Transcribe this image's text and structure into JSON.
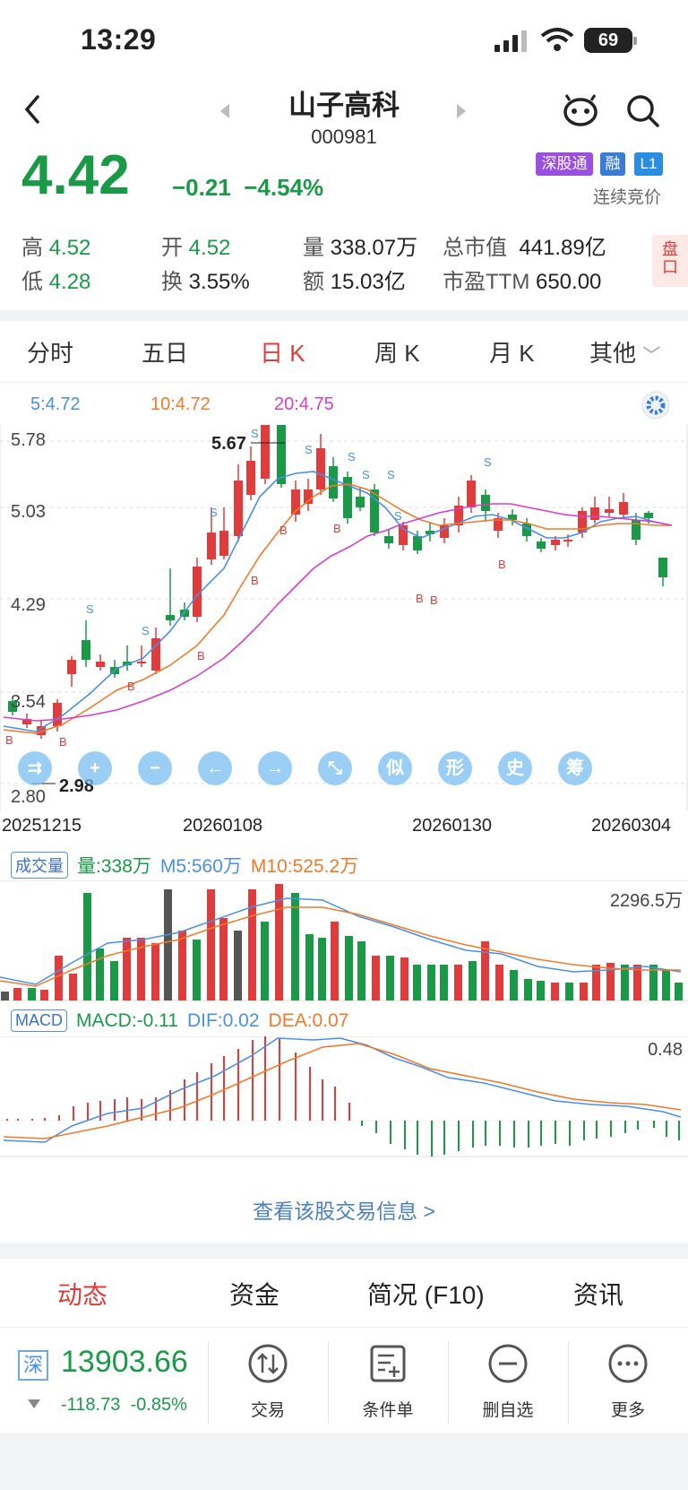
{
  "status_bar": {
    "time": "13:29",
    "battery": "69"
  },
  "header": {
    "title": "山子高科",
    "code": "000981"
  },
  "quote": {
    "price": "4.42",
    "change": "−0.21",
    "change_pct": "−4.54%",
    "badges": [
      {
        "label": "深股通",
        "color": "#9b4fe0"
      },
      {
        "label": "融",
        "color": "#3a7bd5"
      },
      {
        "label": "L1",
        "color": "#2b8de0"
      }
    ],
    "auction": "连续竞价"
  },
  "stats": {
    "high_label": "高",
    "high": "4.52",
    "open_label": "开",
    "open": "4.52",
    "vol_label": "量",
    "vol": "338.07万",
    "mcap_label": "总市值",
    "mcap": "441.89亿",
    "low_label": "低",
    "low": "4.28",
    "turn_label": "换",
    "turn": "3.55%",
    "amt_label": "额",
    "amt": "15.03亿",
    "pe_label": "市盈TTM",
    "pe": "650.00",
    "pankou": "盘口"
  },
  "tabs": [
    "分时",
    "五日",
    "日 K",
    "周 K",
    "月 K",
    "其他"
  ],
  "active_tab": "日 K",
  "ma_legend": {
    "ma5": "5:4.72",
    "ma10": "10:4.72",
    "ma20": "20:4.75"
  },
  "colors": {
    "ma5": "#4a90e2",
    "ma10": "#f07a2a",
    "ma20": "#d43fc7",
    "up": "#e23b3b",
    "down": "#1a9a47"
  },
  "price_axis": [
    "5.78",
    "5.03",
    "4.29",
    "3.54",
    "2.80"
  ],
  "price_annotations": {
    "max": "5.67",
    "min": "2.98"
  },
  "dates": [
    "20251215",
    "20260108",
    "20260130",
    "20260304"
  ],
  "tool_buttons": [
    "⇉",
    "+",
    "−",
    "←",
    "→",
    "⤡",
    "似",
    "形",
    "史",
    "筹"
  ],
  "volume": {
    "label": "成交量",
    "vol": "量:338万",
    "m5": "M5:560万",
    "m10": "M10:525.2万",
    "max": "2296.5万"
  },
  "macd": {
    "label": "MACD",
    "macd": "MACD:-0.11",
    "dif": "DIF:0.02",
    "dea": "DEA:0.07",
    "max": "0.48"
  },
  "link": "查看该股交易信息 >",
  "bottom_tabs": [
    "动态",
    "资金",
    "简况 (F10)",
    "资讯"
  ],
  "index": {
    "badge": "深",
    "value": "13903.66",
    "change": "-118.73",
    "change_pct": "-0.85%"
  },
  "tools": [
    "交易",
    "条件单",
    "删自选",
    "更多"
  ]
}
